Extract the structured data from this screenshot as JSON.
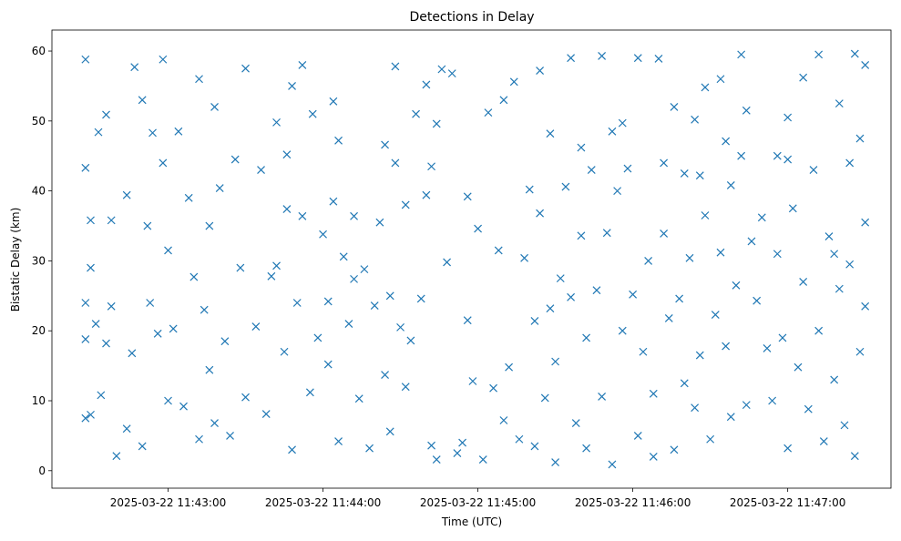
{
  "chart_data": {
    "type": "scatter",
    "title": "Detections in Delay",
    "xlabel": "Time (UTC)",
    "ylabel": "Bistatic Delay (km)",
    "marker": "x",
    "color": "#1f77b4",
    "grid": false,
    "legend": "none",
    "xlim": [
      "2025-03-22 11:42:15",
      "2025-03-22 11:47:40"
    ],
    "ylim": [
      -2.5,
      63
    ],
    "x_ticks": [
      {
        "t": "2025-03-22 11:43:00",
        "label": "2025-03-22 11:43:00"
      },
      {
        "t": "2025-03-22 11:44:00",
        "label": "2025-03-22 11:44:00"
      },
      {
        "t": "2025-03-22 11:45:00",
        "label": "2025-03-22 11:45:00"
      },
      {
        "t": "2025-03-22 11:46:00",
        "label": "2025-03-22 11:46:00"
      },
      {
        "t": "2025-03-22 11:47:00",
        "label": "2025-03-22 11:47:00"
      }
    ],
    "y_ticks": [
      {
        "v": 0,
        "label": "0"
      },
      {
        "v": 10,
        "label": "10"
      },
      {
        "v": 20,
        "label": "20"
      },
      {
        "v": 30,
        "label": "30"
      },
      {
        "v": 40,
        "label": "40"
      },
      {
        "v": 50,
        "label": "50"
      },
      {
        "v": 60,
        "label": "60"
      }
    ],
    "series": [
      {
        "points": [
          [
            "2025-03-22 11:42:28",
            58.8
          ],
          [
            "2025-03-22 11:42:28",
            43.3
          ],
          [
            "2025-03-22 11:42:30",
            35.8
          ],
          [
            "2025-03-22 11:42:30",
            29.0
          ],
          [
            "2025-03-22 11:42:28",
            24.0
          ],
          [
            "2025-03-22 11:42:28",
            18.8
          ],
          [
            "2025-03-22 11:42:28",
            7.5
          ],
          [
            "2025-03-22 11:42:30",
            8.0
          ],
          [
            "2025-03-22 11:42:32",
            21.0
          ],
          [
            "2025-03-22 11:42:34",
            10.8
          ],
          [
            "2025-03-22 11:42:33",
            48.4
          ],
          [
            "2025-03-22 11:42:36",
            50.9
          ],
          [
            "2025-03-22 11:42:38",
            35.8
          ],
          [
            "2025-03-22 11:42:38",
            23.5
          ],
          [
            "2025-03-22 11:42:40",
            2.1
          ],
          [
            "2025-03-22 11:42:44",
            6.0
          ],
          [
            "2025-03-22 11:42:44",
            39.4
          ],
          [
            "2025-03-22 11:42:46",
            16.8
          ],
          [
            "2025-03-22 11:42:47",
            57.7
          ],
          [
            "2025-03-22 11:42:50",
            53.0
          ],
          [
            "2025-03-22 11:42:50",
            3.5
          ],
          [
            "2025-03-22 11:42:53",
            24.0
          ],
          [
            "2025-03-22 11:42:54",
            48.3
          ],
          [
            "2025-03-22 11:42:56",
            19.6
          ],
          [
            "2025-03-22 11:42:58",
            58.8
          ],
          [
            "2025-03-22 11:42:58",
            44.0
          ],
          [
            "2025-03-22 11:43:00",
            31.5
          ],
          [
            "2025-03-22 11:43:00",
            10.0
          ],
          [
            "2025-03-22 11:43:02",
            20.3
          ],
          [
            "2025-03-22 11:43:04",
            48.5
          ],
          [
            "2025-03-22 11:43:06",
            9.2
          ],
          [
            "2025-03-22 11:43:08",
            39.0
          ],
          [
            "2025-03-22 11:43:10",
            27.7
          ],
          [
            "2025-03-22 11:43:12",
            56.0
          ],
          [
            "2025-03-22 11:43:12",
            4.5
          ],
          [
            "2025-03-22 11:43:14",
            23.0
          ],
          [
            "2025-03-22 11:43:16",
            35.0
          ],
          [
            "2025-03-22 11:43:16",
            14.4
          ],
          [
            "2025-03-22 11:43:18",
            52.0
          ],
          [
            "2025-03-22 11:43:20",
            40.4
          ],
          [
            "2025-03-22 11:43:22",
            18.5
          ],
          [
            "2025-03-22 11:43:24",
            5.0
          ],
          [
            "2025-03-22 11:43:26",
            44.5
          ],
          [
            "2025-03-22 11:43:28",
            29.0
          ],
          [
            "2025-03-22 11:43:30",
            57.5
          ],
          [
            "2025-03-22 11:43:30",
            10.5
          ],
          [
            "2025-03-22 11:43:34",
            20.6
          ],
          [
            "2025-03-22 11:43:36",
            43.0
          ],
          [
            "2025-03-22 11:43:38",
            8.1
          ],
          [
            "2025-03-22 11:43:40",
            27.8
          ],
          [
            "2025-03-22 11:43:42",
            49.8
          ],
          [
            "2025-03-22 11:43:42",
            29.3
          ],
          [
            "2025-03-22 11:43:45",
            17.0
          ],
          [
            "2025-03-22 11:43:46",
            37.4
          ],
          [
            "2025-03-22 11:43:48",
            3.0
          ],
          [
            "2025-03-22 11:43:48",
            55.0
          ],
          [
            "2025-03-22 11:43:50",
            24.0
          ],
          [
            "2025-03-22 11:43:52",
            36.4
          ],
          [
            "2025-03-22 11:43:52",
            58.0
          ],
          [
            "2025-03-22 11:43:55",
            11.2
          ],
          [
            "2025-03-22 11:43:56",
            51.0
          ],
          [
            "2025-03-22 11:43:58",
            19.0
          ],
          [
            "2025-03-22 11:44:00",
            33.8
          ],
          [
            "2025-03-22 11:44:02",
            15.2
          ],
          [
            "2025-03-22 11:44:02",
            24.2
          ],
          [
            "2025-03-22 11:44:04",
            52.8
          ],
          [
            "2025-03-22 11:44:04",
            38.5
          ],
          [
            "2025-03-22 11:44:06",
            4.2
          ],
          [
            "2025-03-22 11:44:06",
            47.2
          ],
          [
            "2025-03-22 11:44:08",
            30.6
          ],
          [
            "2025-03-22 11:44:10",
            21.0
          ],
          [
            "2025-03-22 11:44:12",
            36.4
          ],
          [
            "2025-03-22 11:44:14",
            10.3
          ],
          [
            "2025-03-22 11:44:16",
            28.8
          ],
          [
            "2025-03-22 11:44:18",
            3.2
          ],
          [
            "2025-03-22 11:44:20",
            23.6
          ],
          [
            "2025-03-22 11:44:22",
            35.5
          ],
          [
            "2025-03-22 11:44:24",
            13.7
          ],
          [
            "2025-03-22 11:44:24",
            46.6
          ],
          [
            "2025-03-22 11:44:26",
            5.6
          ],
          [
            "2025-03-22 11:44:26",
            25.0
          ],
          [
            "2025-03-22 11:44:28",
            57.8
          ],
          [
            "2025-03-22 11:44:28",
            44.0
          ],
          [
            "2025-03-22 11:44:30",
            20.5
          ],
          [
            "2025-03-22 11:44:32",
            38.0
          ],
          [
            "2025-03-22 11:44:32",
            12.0
          ],
          [
            "2025-03-22 11:44:34",
            18.6
          ],
          [
            "2025-03-22 11:44:36",
            51.0
          ],
          [
            "2025-03-22 11:44:38",
            24.6
          ],
          [
            "2025-03-22 11:44:40",
            39.4
          ],
          [
            "2025-03-22 11:44:42",
            3.6
          ],
          [
            "2025-03-22 11:44:42",
            43.5
          ],
          [
            "2025-03-22 11:44:44",
            1.6
          ],
          [
            "2025-03-22 11:44:44",
            49.6
          ],
          [
            "2025-03-22 11:44:46",
            57.4
          ],
          [
            "2025-03-22 11:44:48",
            29.8
          ],
          [
            "2025-03-22 11:44:50",
            56.8
          ],
          [
            "2025-03-22 11:44:52",
            2.5
          ],
          [
            "2025-03-22 11:44:54",
            4.0
          ],
          [
            "2025-03-22 11:44:56",
            21.5
          ],
          [
            "2025-03-22 11:44:56",
            39.2
          ],
          [
            "2025-03-22 11:44:58",
            12.8
          ],
          [
            "2025-03-22 11:45:00",
            34.6
          ],
          [
            "2025-03-22 11:45:02",
            1.6
          ],
          [
            "2025-03-22 11:45:04",
            51.2
          ],
          [
            "2025-03-22 11:45:06",
            11.8
          ],
          [
            "2025-03-22 11:45:08",
            31.5
          ],
          [
            "2025-03-22 11:45:10",
            53.0
          ],
          [
            "2025-03-22 11:45:10",
            7.2
          ],
          [
            "2025-03-22 11:45:12",
            14.8
          ],
          [
            "2025-03-22 11:45:14",
            55.6
          ],
          [
            "2025-03-22 11:45:16",
            4.5
          ],
          [
            "2025-03-22 11:45:18",
            30.4
          ],
          [
            "2025-03-22 11:45:20",
            40.2
          ],
          [
            "2025-03-22 11:45:22",
            21.4
          ],
          [
            "2025-03-22 11:45:22",
            3.5
          ],
          [
            "2025-03-22 11:45:24",
            57.2
          ],
          [
            "2025-03-22 11:45:24",
            36.8
          ],
          [
            "2025-03-22 11:45:26",
            10.4
          ],
          [
            "2025-03-22 11:45:28",
            48.2
          ],
          [
            "2025-03-22 11:45:30",
            1.2
          ],
          [
            "2025-03-22 11:45:30",
            15.6
          ],
          [
            "2025-03-22 11:45:32",
            27.5
          ],
          [
            "2025-03-22 11:45:34",
            40.6
          ],
          [
            "2025-03-22 11:45:36",
            59.0
          ],
          [
            "2025-03-22 11:45:36",
            24.8
          ],
          [
            "2025-03-22 11:45:38",
            6.8
          ],
          [
            "2025-03-22 11:45:40",
            46.2
          ],
          [
            "2025-03-22 11:45:40",
            33.6
          ],
          [
            "2025-03-22 11:45:42",
            19.0
          ],
          [
            "2025-03-22 11:45:42",
            3.2
          ],
          [
            "2025-03-22 11:45:44",
            43.0
          ],
          [
            "2025-03-22 11:45:46",
            25.8
          ],
          [
            "2025-03-22 11:45:48",
            59.3
          ],
          [
            "2025-03-22 11:45:48",
            10.6
          ],
          [
            "2025-03-22 11:45:50",
            34.0
          ],
          [
            "2025-03-22 11:45:52",
            0.9
          ],
          [
            "2025-03-22 11:45:52",
            48.5
          ],
          [
            "2025-03-22 11:45:54",
            40.0
          ],
          [
            "2025-03-22 11:45:56",
            20.0
          ],
          [
            "2025-03-22 11:45:58",
            43.2
          ],
          [
            "2025-03-22 11:46:00",
            25.2
          ],
          [
            "2025-03-22 11:46:02",
            5.0
          ],
          [
            "2025-03-22 11:46:04",
            17.0
          ],
          [
            "2025-03-22 11:46:06",
            30.0
          ],
          [
            "2025-03-22 11:46:08",
            2.0
          ],
          [
            "2025-03-22 11:46:08",
            11.0
          ],
          [
            "2025-03-22 11:46:10",
            58.9
          ],
          [
            "2025-03-22 11:46:12",
            44.0
          ],
          [
            "2025-03-22 11:46:12",
            33.9
          ],
          [
            "2025-03-22 11:46:14",
            21.8
          ],
          [
            "2025-03-22 11:46:16",
            52.0
          ],
          [
            "2025-03-22 11:46:16",
            3.0
          ],
          [
            "2025-03-22 11:46:18",
            24.6
          ],
          [
            "2025-03-22 11:46:20",
            12.5
          ],
          [
            "2025-03-22 11:46:20",
            42.5
          ],
          [
            "2025-03-22 11:46:22",
            30.4
          ],
          [
            "2025-03-22 11:46:24",
            50.2
          ],
          [
            "2025-03-22 11:46:24",
            9.0
          ],
          [
            "2025-03-22 11:46:26",
            16.5
          ],
          [
            "2025-03-22 11:46:28",
            54.8
          ],
          [
            "2025-03-22 11:46:28",
            36.5
          ],
          [
            "2025-03-22 11:46:30",
            4.5
          ],
          [
            "2025-03-22 11:46:32",
            22.3
          ],
          [
            "2025-03-22 11:46:34",
            56.0
          ],
          [
            "2025-03-22 11:46:34",
            31.2
          ],
          [
            "2025-03-22 11:46:36",
            17.8
          ],
          [
            "2025-03-22 11:46:36",
            47.1
          ],
          [
            "2025-03-22 11:46:38",
            7.7
          ],
          [
            "2025-03-22 11:46:38",
            40.8
          ],
          [
            "2025-03-22 11:46:40",
            26.5
          ],
          [
            "2025-03-22 11:46:42",
            59.5
          ],
          [
            "2025-03-22 11:46:42",
            45.0
          ],
          [
            "2025-03-22 11:46:44",
            9.4
          ],
          [
            "2025-03-22 11:46:46",
            32.8
          ],
          [
            "2025-03-22 11:46:48",
            24.3
          ],
          [
            "2025-03-22 11:46:50",
            36.2
          ],
          [
            "2025-03-22 11:46:52",
            17.5
          ],
          [
            "2025-03-22 11:46:54",
            10.0
          ],
          [
            "2025-03-22 11:46:56",
            45.0
          ],
          [
            "2025-03-22 11:46:56",
            31.0
          ],
          [
            "2025-03-22 11:46:58",
            19.0
          ],
          [
            "2025-03-22 11:47:00",
            50.5
          ],
          [
            "2025-03-22 11:47:00",
            3.2
          ],
          [
            "2025-03-22 11:47:02",
            37.5
          ],
          [
            "2025-03-22 11:47:04",
            14.8
          ],
          [
            "2025-03-22 11:47:06",
            56.2
          ],
          [
            "2025-03-22 11:47:06",
            27.0
          ],
          [
            "2025-03-22 11:47:08",
            8.8
          ],
          [
            "2025-03-22 11:47:10",
            43.0
          ],
          [
            "2025-03-22 11:47:12",
            59.5
          ],
          [
            "2025-03-22 11:47:12",
            20.0
          ],
          [
            "2025-03-22 11:47:14",
            4.2
          ],
          [
            "2025-03-22 11:47:16",
            33.5
          ],
          [
            "2025-03-22 11:47:18",
            13.0
          ],
          [
            "2025-03-22 11:47:20",
            52.5
          ],
          [
            "2025-03-22 11:47:20",
            26.0
          ],
          [
            "2025-03-22 11:47:22",
            6.5
          ],
          [
            "2025-03-22 11:47:24",
            44.0
          ],
          [
            "2025-03-22 11:47:24",
            29.5
          ],
          [
            "2025-03-22 11:47:26",
            59.6
          ],
          [
            "2025-03-22 11:47:26",
            2.1
          ],
          [
            "2025-03-22 11:47:28",
            47.5
          ],
          [
            "2025-03-22 11:47:28",
            17.0
          ],
          [
            "2025-03-22 11:47:30",
            35.5
          ],
          [
            "2025-03-22 11:47:30",
            58.0
          ],
          [
            "2025-03-22 11:47:30",
            23.5
          ],
          [
            "2025-03-22 11:47:00",
            44.5
          ],
          [
            "2025-03-22 11:46:44",
            51.5
          ],
          [
            "2025-03-22 11:46:26",
            42.2
          ],
          [
            "2025-03-22 11:45:56",
            49.7
          ],
          [
            "2025-03-22 11:45:28",
            23.2
          ],
          [
            "2025-03-22 11:44:40",
            55.2
          ],
          [
            "2025-03-22 11:44:12",
            27.4
          ],
          [
            "2025-03-22 11:43:46",
            45.2
          ],
          [
            "2025-03-22 11:43:18",
            6.8
          ],
          [
            "2025-03-22 11:42:52",
            35.0
          ],
          [
            "2025-03-22 11:42:36",
            18.2
          ],
          [
            "2025-03-22 11:47:18",
            31.0
          ],
          [
            "2025-03-22 11:46:02",
            59.0
          ]
        ]
      }
    ]
  }
}
